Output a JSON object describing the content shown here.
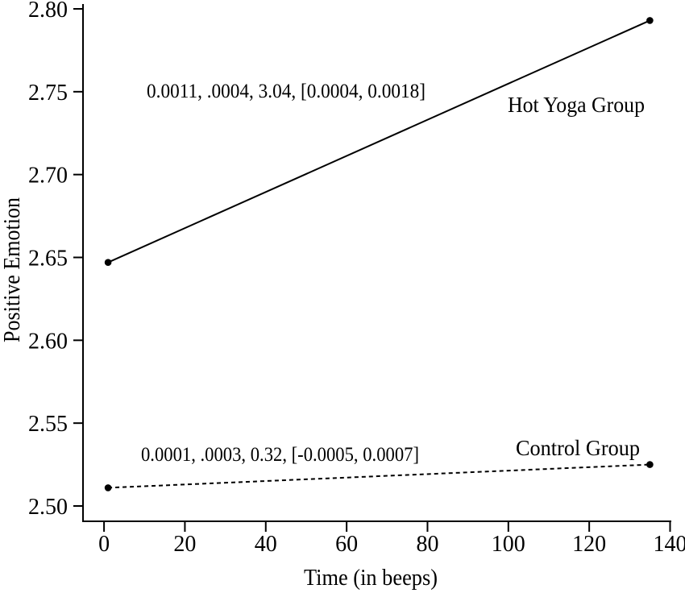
{
  "chart_data": {
    "type": "line",
    "title": "",
    "xlabel": "Time (in beeps)",
    "ylabel": "Positive Emotion",
    "x_ticks": [
      "0",
      "20",
      "40",
      "60",
      "80",
      "100",
      "120",
      "140"
    ],
    "y_ticks": [
      "2.50",
      "2.55",
      "2.60",
      "2.65",
      "2.70",
      "2.75",
      "2.80"
    ],
    "xlim": [
      -5.2,
      140.3
    ],
    "ylim": [
      2.49,
      2.8
    ],
    "grid": false,
    "legend_position": "inline-labels",
    "colors": {
      "line": "#000000",
      "text": "#000000",
      "background": "#ffffff"
    },
    "series": [
      {
        "name": "Hot Yoga Group",
        "line_style": "solid",
        "marker": "point",
        "x": [
          1,
          135
        ],
        "y": [
          2.647,
          2.793
        ],
        "stats_annotation": "0.0011, .0004, 3.04, [0.0004, 0.0018]"
      },
      {
        "name": "Control Group",
        "line_style": "dashed",
        "marker": "point",
        "x": [
          1,
          135
        ],
        "y": [
          2.511,
          2.525
        ],
        "stats_annotation": "0.0001, .0003, 0.32, [-0.0005, 0.0007]"
      }
    ]
  }
}
